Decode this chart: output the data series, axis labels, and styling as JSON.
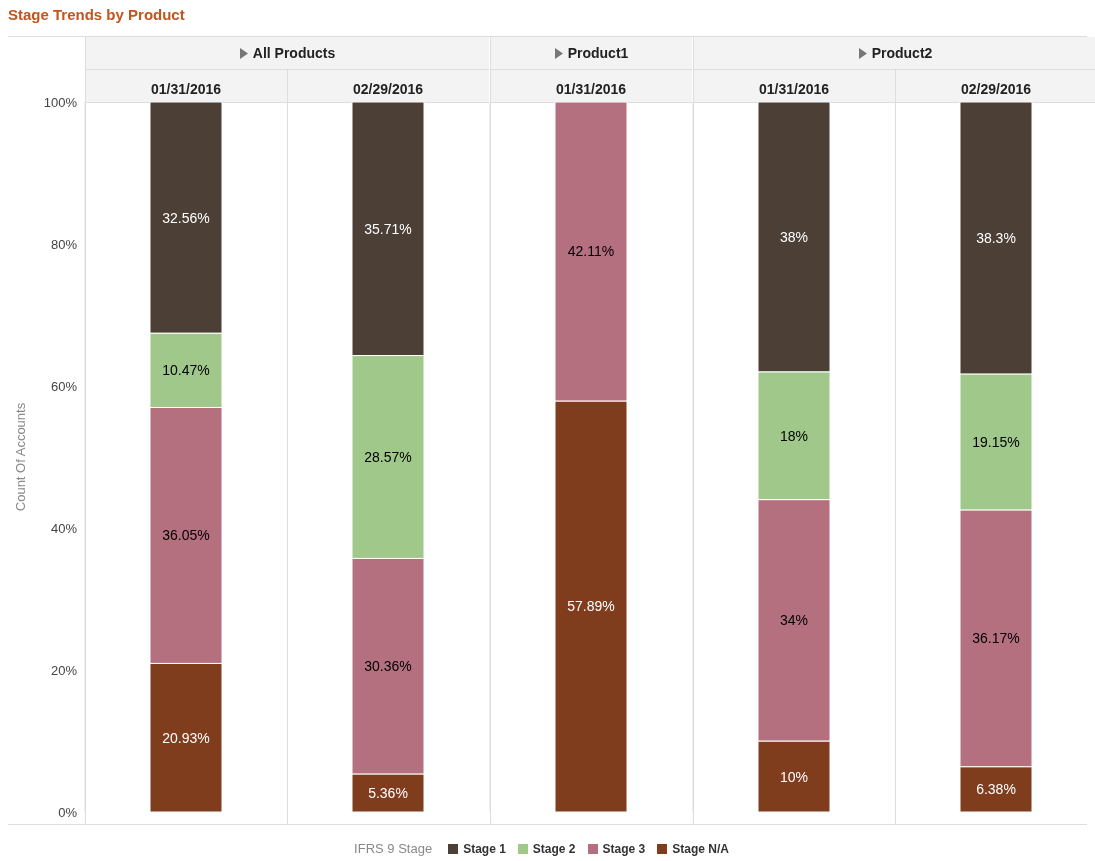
{
  "chart_data": [
    {
      "type": "bar",
      "stacked": true,
      "title": "All Products",
      "annotations": [
        "Stage Trends by Product"
      ],
      "ylabel": "Count Of Accounts",
      "legend_title": "IFRS 9 Stage",
      "legend": "bottom",
      "categories": [
        "01/31/2016",
        "02/29/2016"
      ],
      "ylim": [
        0,
        100
      ],
      "yticks": [
        {
          "value": 0,
          "label": "0%"
        },
        {
          "value": 20,
          "label": "20%"
        },
        {
          "value": 40,
          "label": "40%"
        },
        {
          "value": 60,
          "label": "60%"
        },
        {
          "value": 80,
          "label": "80%"
        },
        {
          "value": 100,
          "label": "100%"
        }
      ],
      "series": [
        {
          "name": "Stage N/A",
          "color": "#7f3d1e",
          "values": [
            20.93,
            5.36
          ],
          "value_labels": [
            "20.93%",
            "5.36%"
          ]
        },
        {
          "name": "Stage 3",
          "color": "#b57080",
          "values": [
            36.05,
            30.36
          ],
          "value_labels": [
            "36.05%",
            "30.36%"
          ]
        },
        {
          "name": "Stage 2",
          "color": "#a0c88a",
          "values": [
            10.47,
            28.57
          ],
          "value_labels": [
            "10.47%",
            "28.57%"
          ]
        },
        {
          "name": "Stage 1",
          "color": "#4b3f36",
          "values": [
            32.56,
            35.71
          ],
          "value_labels": [
            "32.56%",
            "35.71%"
          ]
        }
      ]
    },
    {
      "type": "bar",
      "stacked": true,
      "title": "Product1",
      "tick_labels": "x",
      "categories": [
        "01/31/2016"
      ],
      "ylim": [
        0,
        100
      ],
      "series": [
        {
          "color": "#7f3d1e",
          "values": [
            57.89
          ],
          "value_labels": [
            "57.89%"
          ]
        },
        {
          "color": "#b57080",
          "values": [
            42.11
          ],
          "value_labels": [
            "42.11%"
          ]
        },
        {
          "color": "#a0c88a",
          "values": [
            null
          ],
          "value_labels": [
            null
          ]
        },
        {
          "color": "#4b3f36",
          "values": [
            null
          ],
          "value_labels": [
            null
          ]
        }
      ]
    },
    {
      "type": "bar",
      "stacked": true,
      "title": "Product2",
      "tick_labels": "x",
      "categories": [
        "01/31/2016",
        "02/29/2016"
      ],
      "ylim": [
        0,
        100
      ],
      "series": [
        {
          "color": "#7f3d1e",
          "values": [
            10,
            6.38
          ],
          "value_labels": [
            "10%",
            "6.38%"
          ]
        },
        {
          "color": "#b57080",
          "values": [
            34,
            36.17
          ],
          "value_labels": [
            "34%",
            "36.17%"
          ]
        },
        {
          "color": "#a0c88a",
          "values": [
            18,
            19.15
          ],
          "value_labels": [
            "18%",
            "19.15%"
          ]
        },
        {
          "color": "#4b3f36",
          "values": [
            38,
            38.3
          ],
          "value_labels": [
            "38%",
            "38.3%"
          ]
        }
      ]
    }
  ]
}
